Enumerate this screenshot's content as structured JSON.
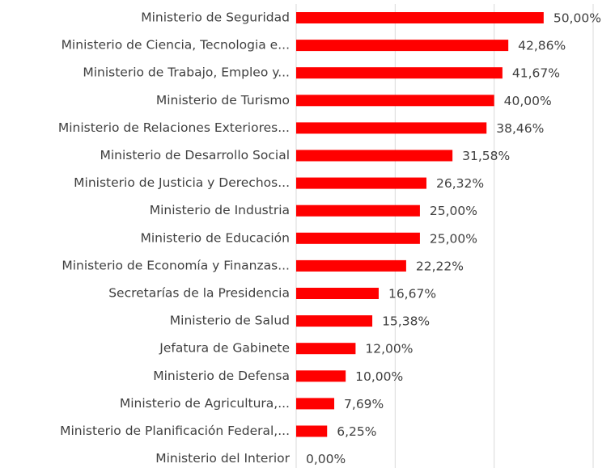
{
  "chart_data": {
    "type": "bar",
    "orientation": "horizontal",
    "categories": [
      "Ministerio de Seguridad",
      "Ministerio de Ciencia, Tecnologia e...",
      "Ministerio de Trabajo, Empleo y...",
      "Ministerio de Turismo",
      "Ministerio de Relaciones Exteriores...",
      "Ministerio de Desarrollo Social",
      "Ministerio de Justicia y Derechos...",
      "Ministerio de Industria",
      "Ministerio de Educación",
      "Ministerio de Economía y Finanzas...",
      "Secretarías de la Presidencia",
      "Ministerio de Salud",
      "Jefatura de Gabinete",
      "Ministerio de Defensa",
      "Ministerio de Agricultura,...",
      "Ministerio de Planificación Federal,...",
      "Ministerio del Interior"
    ],
    "values": [
      50,
      42.86,
      41.67,
      40,
      38.46,
      31.58,
      26.32,
      25,
      25,
      22.22,
      16.67,
      15.38,
      12,
      10,
      7.69,
      6.25,
      0
    ],
    "value_labels": [
      "50,00%",
      "42,86%",
      "41,67%",
      "40,00%",
      "38,46%",
      "31,58%",
      "26,32%",
      "25,00%",
      "25,00%",
      "22,22%",
      "16,67%",
      "15,38%",
      "12,00%",
      "10,00%",
      "7,69%",
      "6,25%",
      "0,00%"
    ],
    "color": "#ff0000",
    "xlim": [
      0,
      60
    ],
    "xticks": [
      0,
      20,
      40,
      60
    ],
    "grid": true
  }
}
